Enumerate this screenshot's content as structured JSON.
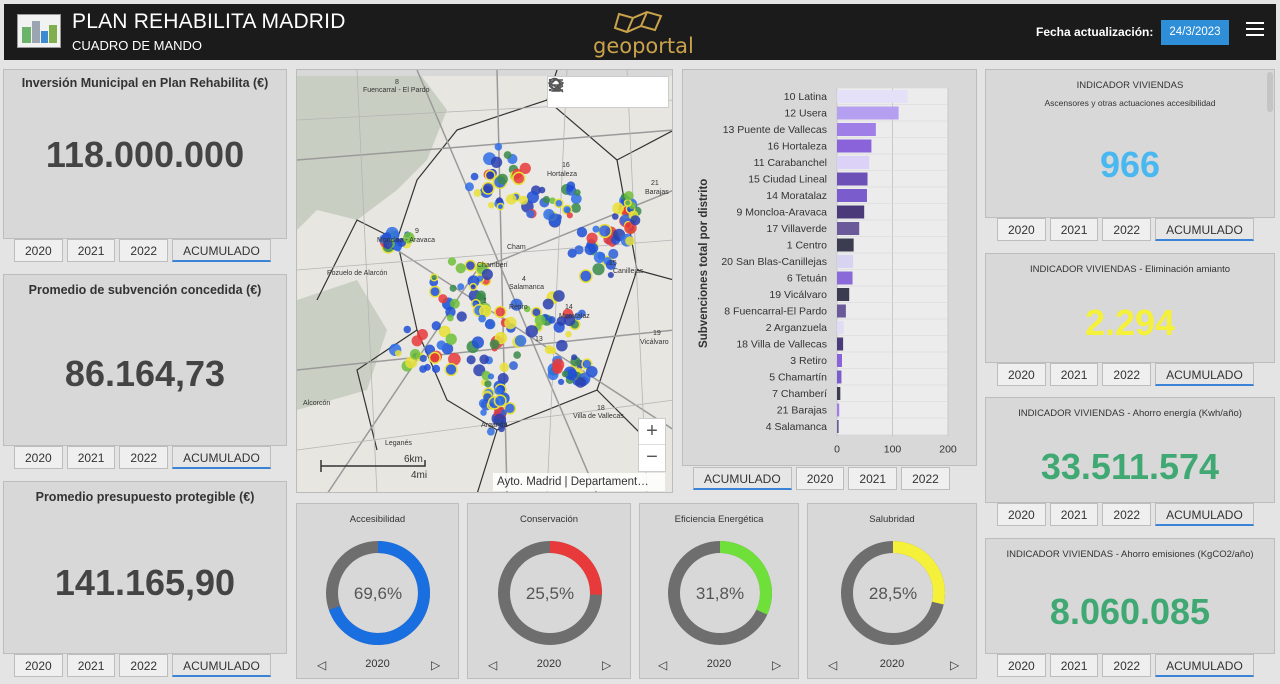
{
  "header": {
    "title": "PLAN REHABILITA MADRID",
    "subtitle": "CUADRO DE MANDO",
    "geoportal": "geoportal",
    "date_label": "Fecha actualización:",
    "date_value": "24/3/2023"
  },
  "kpis": [
    {
      "title": "Inversión Municipal en Plan Rehabilita (€)",
      "value": "118.000.000"
    },
    {
      "title": "Promedio de subvención concedida (€)",
      "value": "86.164,73"
    },
    {
      "title": "Promedio presupuesto protegible (€)",
      "value": "141.165,90"
    }
  ],
  "year_tabs": [
    "2020",
    "2021",
    "2022",
    "ACUMULADO"
  ],
  "chart_tabs": [
    "ACUMULADO",
    "2020",
    "2021",
    "2022"
  ],
  "indicators": [
    {
      "title": "INDICADOR VIVIENDAS",
      "subtitle": "Ascensores y otras actuaciones accesibilidad",
      "value": "966",
      "color": "#4ab8f0"
    },
    {
      "title": "INDICADOR VIVIENDAS - Eliminación amianto",
      "subtitle": "",
      "value": "2.294",
      "color": "#f5f03a"
    },
    {
      "title": "INDICADOR VIVIENDAS - Ahorro energía (Kwh/año)",
      "subtitle": "",
      "value": "33.511.574",
      "color": "#3fa873"
    },
    {
      "title": "INDICADOR VIVIENDAS - Ahorro emisiones (KgCO2/año)",
      "subtitle": "",
      "value": "8.060.085",
      "color": "#3fa873"
    }
  ],
  "map": {
    "attribution": "Ayto. Madrid | Departament…",
    "scale_km": "6km",
    "scale_mi": "4mi",
    "labels": [
      "8",
      "Fuencarral - El Pardo",
      "16",
      "Hortaleza",
      "21",
      "Barajas",
      "9",
      "Moncloa - Aravaca",
      "Cham",
      "Chamberí",
      "4",
      "Salamanca",
      "Retiro",
      "14",
      "Moratalaz",
      "19",
      "Vicálvaro",
      "15",
      "Canillejas",
      "18",
      "Villa de Vallecas",
      "Pozuelo de Alarcón",
      "Leganés",
      "Alcorcón",
      "Arganda",
      "1",
      "13"
    ]
  },
  "chart_data": {
    "type": "bar",
    "orientation": "horizontal",
    "ylabel": "Subvenciones total por distrito",
    "xlim": [
      0,
      200
    ],
    "xticks": [
      "0",
      "100",
      "200"
    ],
    "grid": true,
    "categories": [
      "10 Latina",
      "12 Usera",
      "13 Puente de Vallecas",
      "16 Hortaleza",
      "11 Carabanchel",
      "15 Ciudad Lineal",
      "14 Moratalaz",
      "9 Moncloa-Aravaca",
      "17 Villaverde",
      "1 Centro",
      "20 San Blas-Canillejas",
      "6 Tetuán",
      "19 Vicálvaro",
      "8 Fuencarral-El Pardo",
      "2 Arganzuela",
      "18 Villa de Vallecas",
      "3 Retiro",
      "5 Chamartín",
      "7 Chamberí",
      "21 Barajas",
      "4 Salamanca"
    ],
    "values": [
      127,
      111,
      70,
      62,
      58,
      55,
      54,
      49,
      40,
      30,
      29,
      28,
      22,
      16,
      12,
      11,
      9,
      8,
      6,
      4,
      3
    ],
    "colors": [
      "#e4e0f7",
      "#b49ff0",
      "#a07ee8",
      "#8a63db",
      "#dcd2f7",
      "#6d4fb8",
      "#7a5ccc",
      "#4a3a7a",
      "#6a5a9a",
      "#3c3c50",
      "#d9d3f2",
      "#8a6ad8",
      "#3c3c50",
      "#6a5a9a",
      "#e0dcf5",
      "#4a3a7a",
      "#8a63db",
      "#7a5ccc",
      "#3c3c50",
      "#a07ee8",
      "#6a5a9a"
    ]
  },
  "donuts": [
    {
      "title": "Accesibilidad",
      "percent": 69.6,
      "label": "69,6%",
      "color": "#1a6fe0",
      "year": "2020"
    },
    {
      "title": "Conservación",
      "percent": 25.5,
      "label": "25,5%",
      "color": "#e83a3a",
      "year": "2020"
    },
    {
      "title": "Eficiencia Energética",
      "percent": 31.8,
      "label": "31,8%",
      "color": "#6fe03a",
      "year": "2020"
    },
    {
      "title": "Salubridad",
      "percent": 28.5,
      "label": "28,5%",
      "color": "#f5f03a",
      "year": "2020"
    }
  ],
  "icons": {
    "nav_prev": "◁",
    "nav_next": "▷",
    "zoom_in": "+",
    "zoom_out": "−"
  }
}
